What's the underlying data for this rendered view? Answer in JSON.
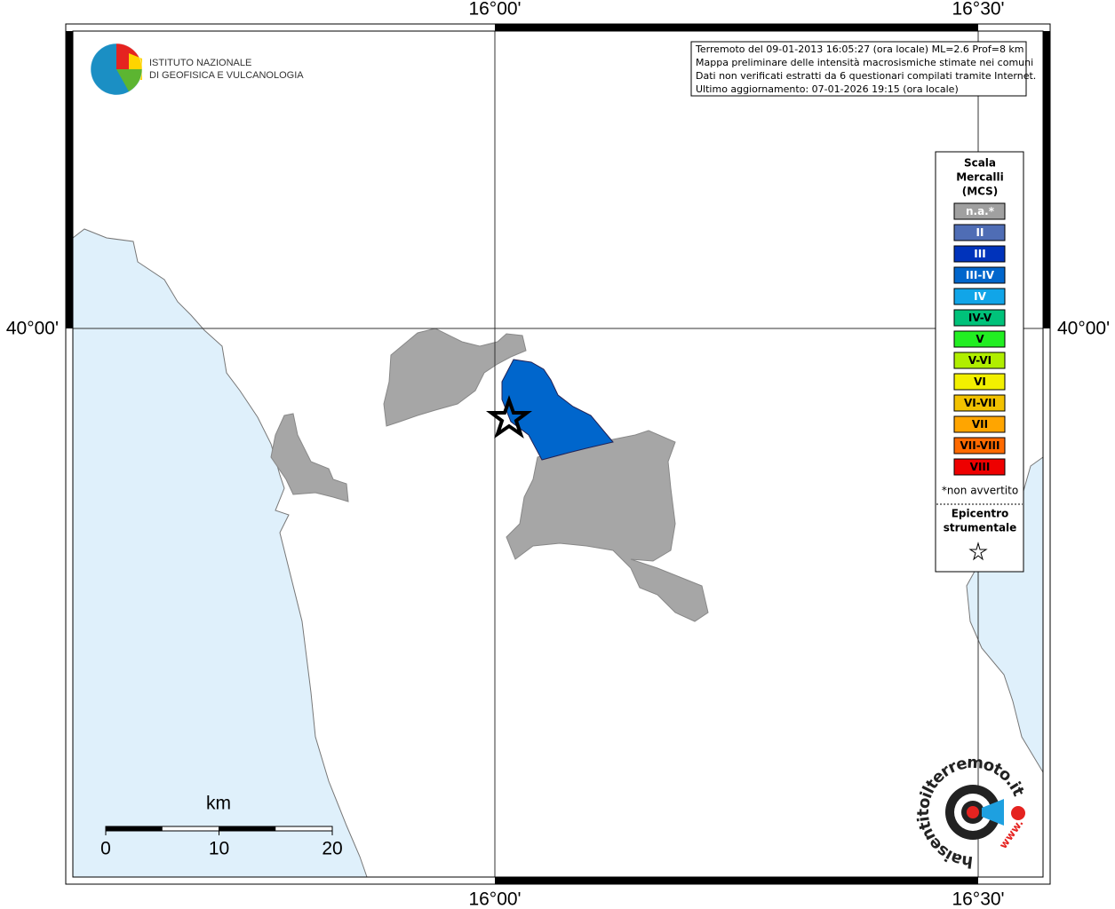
{
  "map": {
    "lon_labels": [
      "16°00'",
      "16°30'"
    ],
    "lat_label": "40°00'",
    "institute": [
      "ISTITUTO NAZIONALE",
      "DI GEOFISICA E VULCANOLOGIA"
    ],
    "info": [
      "Terremoto del 09-01-2013 16:05:27 (ora locale) ML=2.6 Prof=8 km",
      "Mappa preliminare delle intensità macrosismiche stimate nei comuni",
      "Dati non verificati estratti da 6 questionari compilati tramite Internet.",
      "Ultimo aggiornamento: 07-01-2026 19:15 (ora locale)"
    ],
    "legend": {
      "title": [
        "Scala",
        "Mercalli",
        "(MCS)"
      ],
      "items": [
        {
          "label": "n.a.*",
          "color": "#a0a0a0",
          "text_color": "#ffffff"
        },
        {
          "label": "II",
          "color": "#4f6db5",
          "text_color": "#ffffff"
        },
        {
          "label": "III",
          "color": "#0033bb",
          "text_color": "#ffffff"
        },
        {
          "label": "III-IV",
          "color": "#0066cc",
          "text_color": "#ffffff"
        },
        {
          "label": "IV",
          "color": "#11a5e8",
          "text_color": "#ffffff"
        },
        {
          "label": "IV-V",
          "color": "#00c27a",
          "text_color": "#000000"
        },
        {
          "label": "V",
          "color": "#22ee22",
          "text_color": "#000000"
        },
        {
          "label": "V-VI",
          "color": "#b0ee00",
          "text_color": "#000000"
        },
        {
          "label": "VI",
          "color": "#f2f000",
          "text_color": "#000000"
        },
        {
          "label": "VI-VII",
          "color": "#f2c200",
          "text_color": "#000000"
        },
        {
          "label": "VII",
          "color": "#ffa500",
          "text_color": "#000000"
        },
        {
          "label": "VII-VIII",
          "color": "#ff6a00",
          "text_color": "#000000"
        },
        {
          "label": "VIII",
          "color": "#ee0000",
          "text_color": "#000000"
        }
      ],
      "note": "*non avvertito",
      "epicenter": [
        "Epicentro",
        "strumentale"
      ]
    },
    "scale": {
      "unit": "km",
      "ticks": [
        0,
        10,
        20
      ]
    },
    "site": "haisentitoilterremoto.it",
    "site_prefix": "www."
  }
}
